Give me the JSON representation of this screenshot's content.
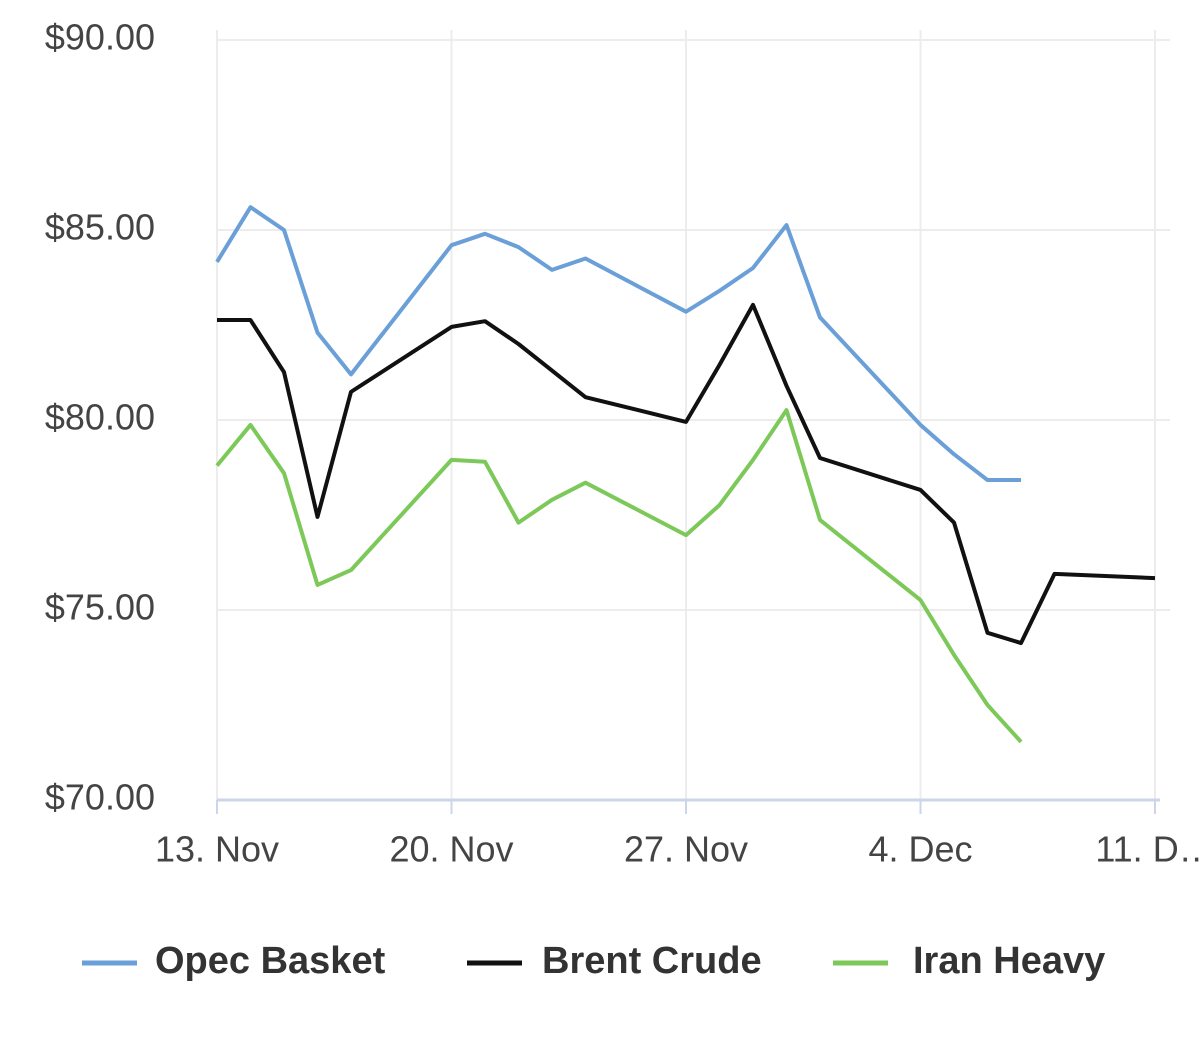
{
  "chart_data": {
    "type": "line",
    "x": [
      "13. Nov",
      "14. Nov",
      "15. Nov",
      "16. Nov",
      "17. Nov",
      "20. Nov",
      "21. Nov",
      "22. Nov",
      "23. Nov",
      "24. Nov",
      "27. Nov",
      "28. Nov",
      "29. Nov",
      "30. Nov",
      "1. Dec",
      "4. Dec",
      "5. Dec",
      "6. Dec",
      "7. Dec",
      "8. Dec",
      "11. Dec"
    ],
    "xlim": [
      "13. Nov",
      "11. Dec"
    ],
    "xticks": [
      "13. Nov",
      "20. Nov",
      "27. Nov",
      "4. Dec",
      {
        "value": "11. Dec",
        "label": "11. D…"
      }
    ],
    "ylim": [
      70,
      90
    ],
    "yticks": [
      {
        "value": 70,
        "label": "$70.00"
      },
      {
        "value": 75,
        "label": "$75.00"
      },
      {
        "value": 80,
        "label": "$80.00"
      },
      {
        "value": 85,
        "label": "$85.00"
      },
      {
        "value": 90,
        "label": "$90.00"
      }
    ],
    "grid": true,
    "legend": "bottom",
    "series": [
      {
        "name": "Opec Basket",
        "color": "#6a9fd8",
        "values": [
          84.16,
          85.6,
          85.0,
          82.3,
          81.2,
          84.6,
          84.9,
          84.55,
          83.95,
          84.25,
          82.85,
          83.4,
          84.0,
          85.13,
          82.7,
          79.87,
          79.1,
          78.42,
          78.42,
          null,
          null
        ]
      },
      {
        "name": "Brent Crude",
        "color": "#111111",
        "values": [
          82.63,
          82.63,
          81.26,
          77.45,
          80.74,
          82.45,
          82.6,
          82.0,
          81.3,
          80.6,
          79.95,
          81.45,
          83.03,
          80.9,
          79.0,
          78.16,
          77.3,
          74.4,
          74.13,
          75.95,
          75.84
        ]
      },
      {
        "name": "Iran Heavy",
        "color": "#7cc95a",
        "values": [
          78.8,
          79.87,
          78.6,
          75.66,
          76.05,
          78.95,
          78.9,
          77.3,
          77.9,
          78.35,
          76.97,
          77.76,
          78.95,
          80.26,
          77.37,
          75.26,
          73.82,
          72.5,
          71.53,
          null,
          null
        ]
      }
    ]
  }
}
